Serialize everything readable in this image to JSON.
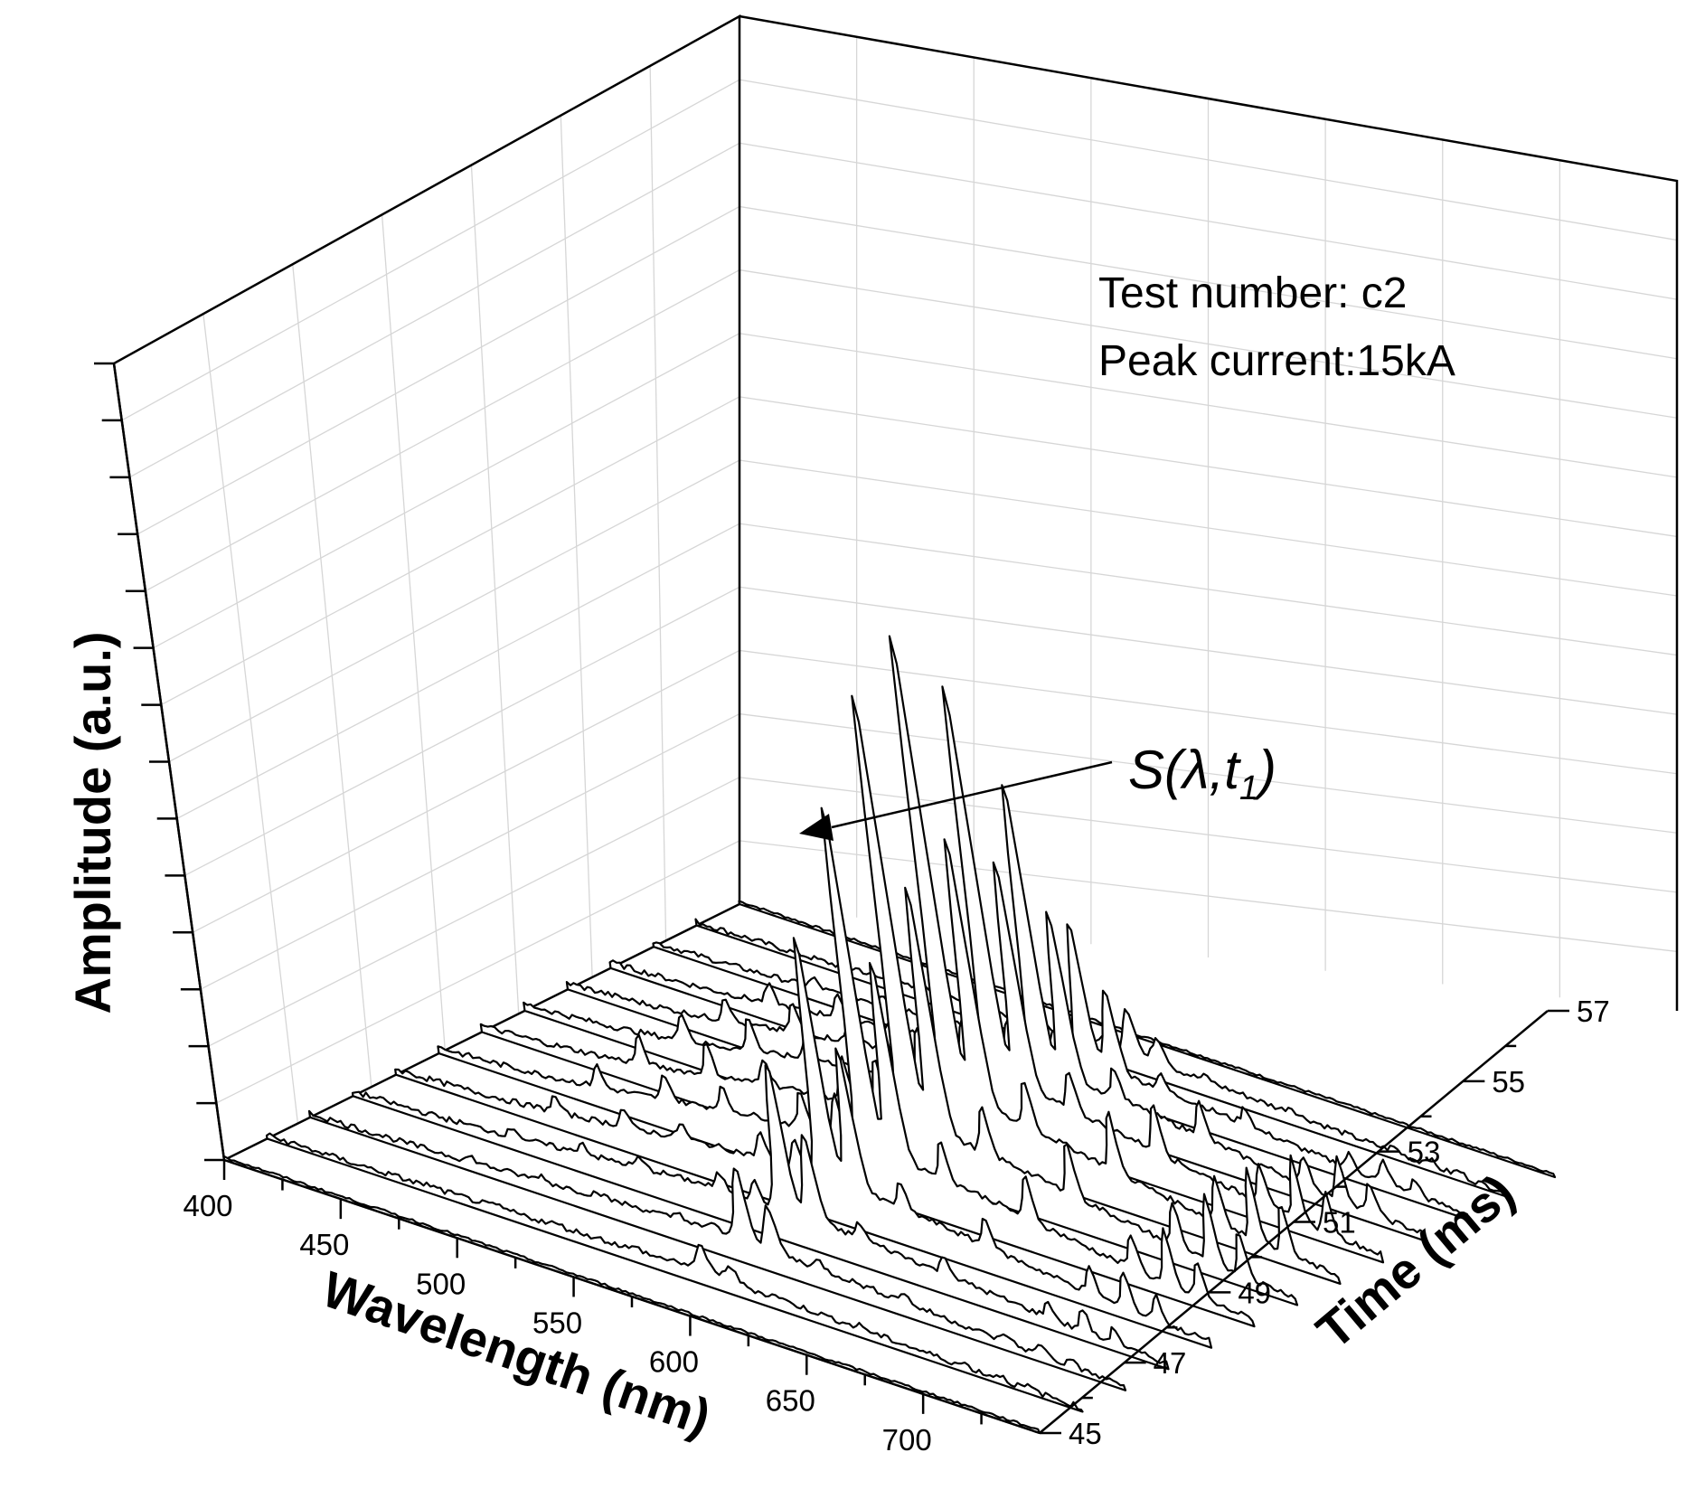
{
  "chart_data": {
    "type": "waterfall-3d",
    "title": "",
    "info_lines": [
      "Test number: c2",
      "Peak current:15kA"
    ],
    "annotation": {
      "label_main": "S(",
      "label_lambda": "λ",
      "label_t": ",t",
      "label_sub": "1",
      "label_close": ")",
      "points_to_time": 51
    },
    "x_axis": {
      "label": "Wavelength (nm)",
      "range": [
        400,
        750
      ],
      "ticks": [
        400,
        450,
        500,
        550,
        600,
        650,
        700
      ],
      "tick_labels": [
        "400",
        "450",
        "500",
        "550",
        "600",
        "650",
        "700"
      ]
    },
    "y_axis": {
      "label": "Time (ms)",
      "range": [
        45,
        57
      ],
      "ticks": [
        45,
        47,
        49,
        51,
        53,
        55,
        57
      ],
      "tick_labels": [
        "45",
        "47",
        "49",
        "51",
        "53",
        "55",
        "57"
      ]
    },
    "z_axis": {
      "label": "Amplitude (a.u.)",
      "range": [
        0,
        1
      ],
      "minor_ticks": 14
    },
    "series_times": [
      57,
      56,
      55,
      54,
      53,
      52,
      51,
      50,
      49,
      48,
      47,
      46,
      45
    ],
    "baseline_shape": {
      "broad_center_nm": 580,
      "broad_width_nm": 110,
      "edge_level": 0.03
    },
    "series_peak_scale": [
      0.0,
      0.1,
      0.3,
      0.62,
      0.85,
      1.0,
      0.92,
      0.74,
      0.52,
      0.32,
      0.16,
      0.06,
      0.0
    ],
    "series_continuum": [
      0.0,
      0.03,
      0.06,
      0.09,
      0.11,
      0.12,
      0.11,
      0.1,
      0.08,
      0.06,
      0.04,
      0.02,
      0.0
    ],
    "spectral_lines": [
      {
        "nm": 470,
        "amp": 0.06
      },
      {
        "nm": 500,
        "amp": 0.07
      },
      {
        "nm": 525,
        "amp": 0.06
      },
      {
        "nm": 560,
        "amp": 0.1
      },
      {
        "nm": 575,
        "amp": 0.12
      },
      {
        "nm": 588,
        "amp": 0.95
      },
      {
        "nm": 600,
        "amp": 0.55
      },
      {
        "nm": 620,
        "amp": 0.1
      },
      {
        "nm": 656,
        "amp": 0.12
      },
      {
        "nm": 700,
        "amp": 0.1
      },
      {
        "nm": 715,
        "amp": 0.15
      },
      {
        "nm": 728,
        "amp": 0.1
      }
    ],
    "colors": {
      "trace_fill": "#ffffff",
      "trace_stroke": "#000000",
      "grid": "#d6d6d6"
    }
  }
}
